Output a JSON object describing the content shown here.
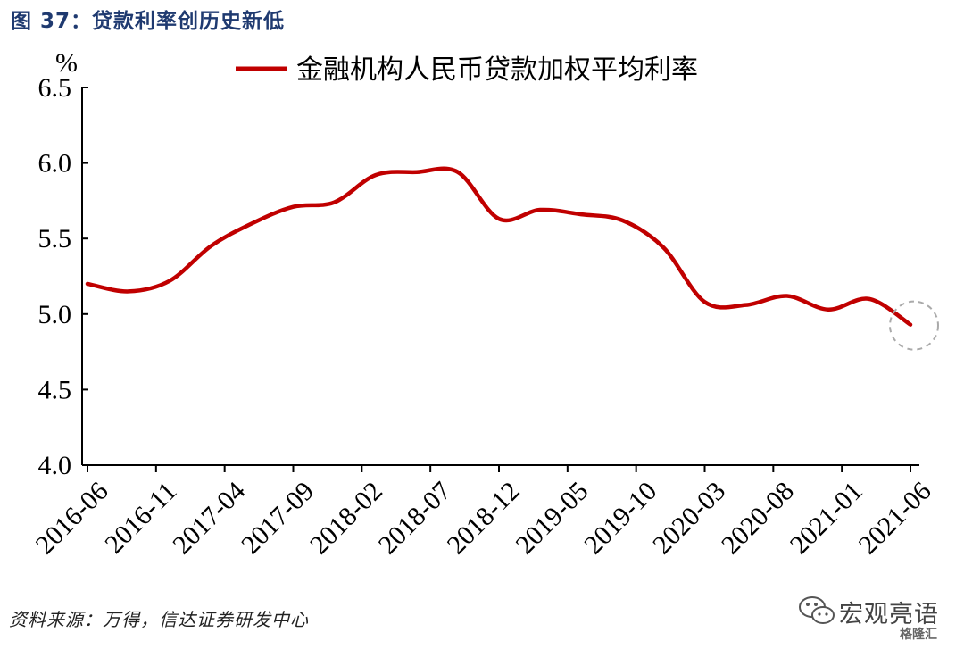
{
  "figure_title": "图 37：贷款利率创历史新低",
  "source_note": "资料来源：万得，信达证券研发中心",
  "watermark": {
    "text": "宏观亮语",
    "sub": "格隆汇",
    "icon": "wechat-icon"
  },
  "colors": {
    "line": "#c00000",
    "axis": "#000000",
    "highlight": "#aaaaaa",
    "title": "#1f3a70"
  },
  "chart_data": {
    "type": "line",
    "title": "",
    "ylabel": "%",
    "xlabel": "",
    "ylim": [
      4.0,
      6.5
    ],
    "yticks": [
      "4.0",
      "4.5",
      "5.0",
      "5.5",
      "6.0",
      "6.5"
    ],
    "xticks": [
      "2016-06",
      "2016-11",
      "2017-04",
      "2017-09",
      "2018-02",
      "2018-07",
      "2018-12",
      "2019-05",
      "2019-10",
      "2020-03",
      "2020-08",
      "2021-01",
      "2021-06"
    ],
    "grid": false,
    "legend": "top-center",
    "highlight_point": "2021-06",
    "series": [
      {
        "name": "金融机构人民币贷款加权平均利率",
        "x": [
          "2016-06",
          "2016-09",
          "2016-12",
          "2017-03",
          "2017-06",
          "2017-09",
          "2017-12",
          "2018-03",
          "2018-06",
          "2018-09",
          "2018-12",
          "2019-03",
          "2019-06",
          "2019-09",
          "2019-12",
          "2020-03",
          "2020-06",
          "2020-09",
          "2020-12",
          "2021-03",
          "2021-06"
        ],
        "values": [
          5.2,
          5.15,
          5.22,
          5.45,
          5.6,
          5.71,
          5.74,
          5.92,
          5.94,
          5.94,
          5.63,
          5.69,
          5.66,
          5.62,
          5.44,
          5.08,
          5.06,
          5.12,
          5.03,
          5.1,
          4.93
        ]
      }
    ]
  }
}
